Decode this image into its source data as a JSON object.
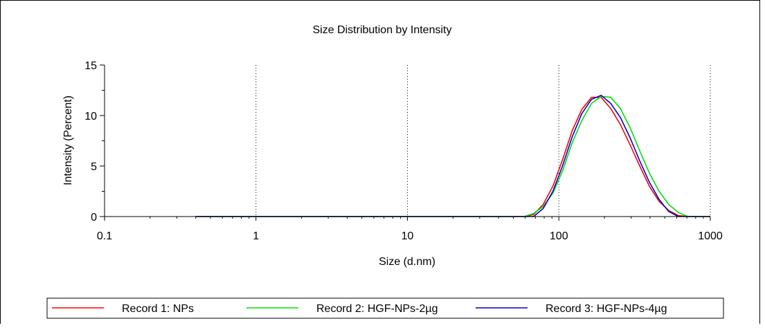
{
  "chart_data": {
    "type": "line",
    "title": "Size Distribution by Intensity",
    "xlabel": "Size (d.nm)",
    "ylabel": "Intensity (Percent)",
    "x_scale": "log",
    "xlim": [
      0.1,
      1000
    ],
    "ylim": [
      0,
      15
    ],
    "x_ticks": [
      "0.1",
      "1",
      "10",
      "100",
      "1000"
    ],
    "y_ticks": [
      "0",
      "5",
      "10",
      "15"
    ],
    "grid": "vertical dotted at decades",
    "legend_position": "bottom",
    "series": [
      {
        "name": "Record 1: NPs",
        "color": "#ff0000",
        "x": [
          0.4,
          1,
          10,
          50,
          58.8,
          68.1,
          78.8,
          91.3,
          105.7,
          122.4,
          141.8,
          164.2,
          190.1,
          220.2,
          255,
          295.3,
          342,
          396.1,
          458.7,
          531.2,
          615.1,
          712.4,
          825,
          1000
        ],
        "y": [
          0,
          0,
          0,
          0,
          0,
          0.2,
          1.2,
          3,
          5.6,
          8.5,
          10.6,
          11.8,
          11.8,
          10.7,
          9.1,
          7.1,
          5,
          3,
          1.5,
          0.6,
          0.1,
          0,
          0,
          0
        ]
      },
      {
        "name": "Record 2: HGF-NPs-2µg",
        "color": "#00dd00",
        "x": [
          0.4,
          1,
          10,
          50,
          58.8,
          68.1,
          78.8,
          91.3,
          105.7,
          122.4,
          141.8,
          164.2,
          190.1,
          220.2,
          255,
          295.3,
          342,
          396.1,
          458.7,
          531.2,
          615.1,
          712.4,
          825,
          1000
        ],
        "y": [
          0,
          0,
          0,
          0,
          0,
          0.3,
          1,
          2.3,
          4.5,
          7.3,
          9.5,
          11.2,
          11.9,
          11.8,
          10.7,
          8.8,
          6.5,
          4.3,
          2.5,
          1.2,
          0.4,
          0,
          0,
          0
        ]
      },
      {
        "name": "Record 3: HGF-NPs-4µg",
        "color": "#0000cc",
        "x": [
          0.4,
          1,
          10,
          50,
          58.8,
          68.1,
          78.8,
          91.3,
          105.7,
          122.4,
          141.8,
          164.2,
          190.1,
          220.2,
          255,
          295.3,
          342,
          396.1,
          458.7,
          531.2,
          615.1,
          712.4,
          825,
          1000
        ],
        "y": [
          0,
          0,
          0,
          0,
          0,
          0,
          0.8,
          2.5,
          5,
          7.9,
          10.2,
          11.6,
          12,
          11.2,
          9.8,
          7.8,
          5.5,
          3.4,
          1.7,
          0.5,
          0,
          0,
          0,
          0
        ]
      }
    ]
  }
}
